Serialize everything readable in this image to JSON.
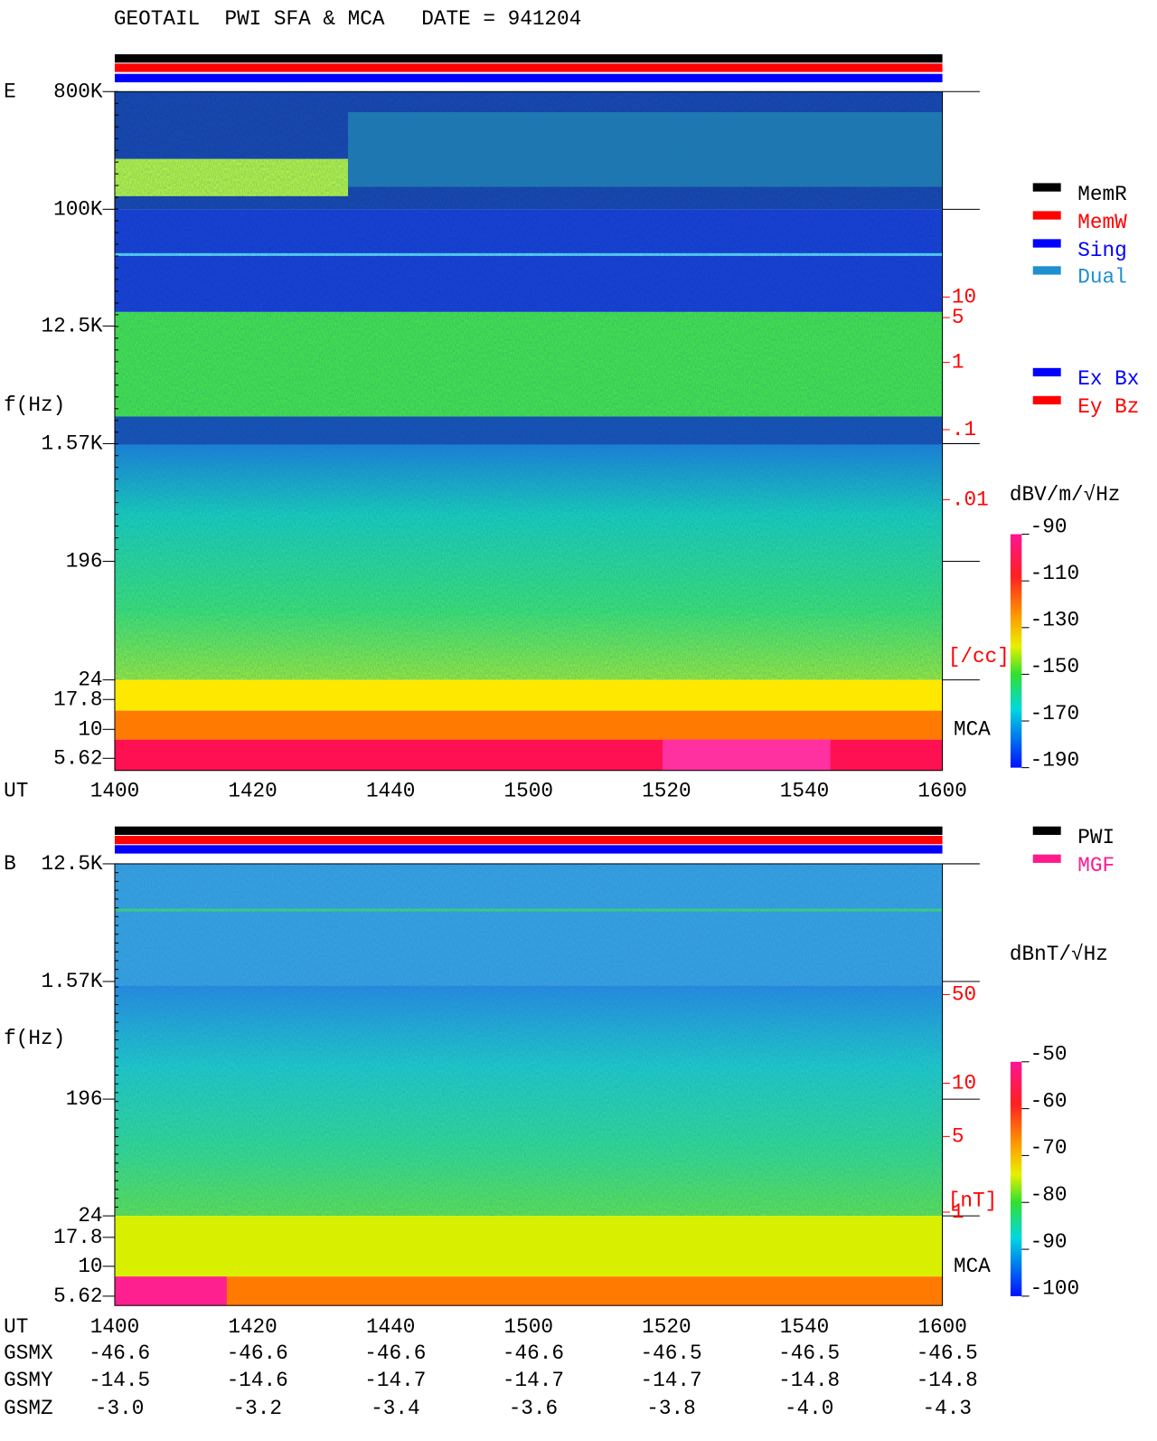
{
  "header": {
    "title": "GEOTAIL  PWI SFA & MCA   DATE = 941204"
  },
  "panels": [
    {
      "label": "E",
      "y_axis_label": "f(Hz)",
      "freq_ticks": [
        "800K",
        "100K",
        "12.5K",
        "1.57K",
        "196",
        "24",
        "17.8",
        "10",
        "5.62"
      ],
      "time_label": "UT",
      "time_ticks": [
        "1400",
        "1420",
        "1440",
        "1500",
        "1520",
        "1540",
        "1600"
      ],
      "right_ticks": [
        "10",
        "5",
        "1",
        ".1",
        ".01"
      ],
      "right_unit": "[/cc]",
      "mca_label": "MCA",
      "legend": [
        {
          "name": "MemR",
          "color": "#000000"
        },
        {
          "name": "MemW",
          "color": "#ff0000"
        },
        {
          "name": "Sing",
          "color": "#0000ff"
        },
        {
          "name": "Dual",
          "color": "#1e8fd0"
        }
      ],
      "legend2": [
        {
          "name": "Ex Bx",
          "color": "#0000ff"
        },
        {
          "name": "Ey Bz",
          "color": "#ff0000"
        }
      ],
      "colorbar": {
        "unit": "dBV/m/√Hz",
        "ticks": [
          "-90",
          "-110",
          "-130",
          "-150",
          "-170",
          "-190"
        ]
      }
    },
    {
      "label": "B",
      "y_axis_label": "f(Hz)",
      "freq_ticks": [
        "12.5K",
        "1.57K",
        "196",
        "24",
        "17.8",
        "10",
        "5.62"
      ],
      "time_label": "UT",
      "time_ticks": [
        "1400",
        "1420",
        "1440",
        "1500",
        "1520",
        "1540",
        "1600"
      ],
      "right_ticks": [
        "50",
        "10",
        "5",
        "1"
      ],
      "right_unit": "[nT]",
      "mca_label": "MCA",
      "legend": [
        {
          "name": "PWI",
          "color": "#000000"
        },
        {
          "name": "MGF",
          "color": "#ff1a8c"
        }
      ],
      "legend2": [],
      "colorbar": {
        "unit": "dBnT/√Hz",
        "ticks": [
          "-50",
          "-60",
          "-70",
          "-80",
          "-90",
          "-100"
        ]
      }
    }
  ],
  "orbit": {
    "rows": [
      {
        "name": "GSMX",
        "values": [
          "-46.6",
          "-46.6",
          "-46.6",
          "-46.6",
          "-46.5",
          "-46.5",
          "-46.5"
        ]
      },
      {
        "name": "GSMY",
        "values": [
          "-14.5",
          "-14.6",
          "-14.7",
          "-14.7",
          "-14.7",
          "-14.8",
          "-14.8"
        ]
      },
      {
        "name": "GSMZ",
        "values": [
          "-3.0",
          "-3.2",
          "-3.4",
          "-3.6",
          "-3.8",
          "-4.0",
          "-4.3"
        ]
      }
    ]
  }
}
